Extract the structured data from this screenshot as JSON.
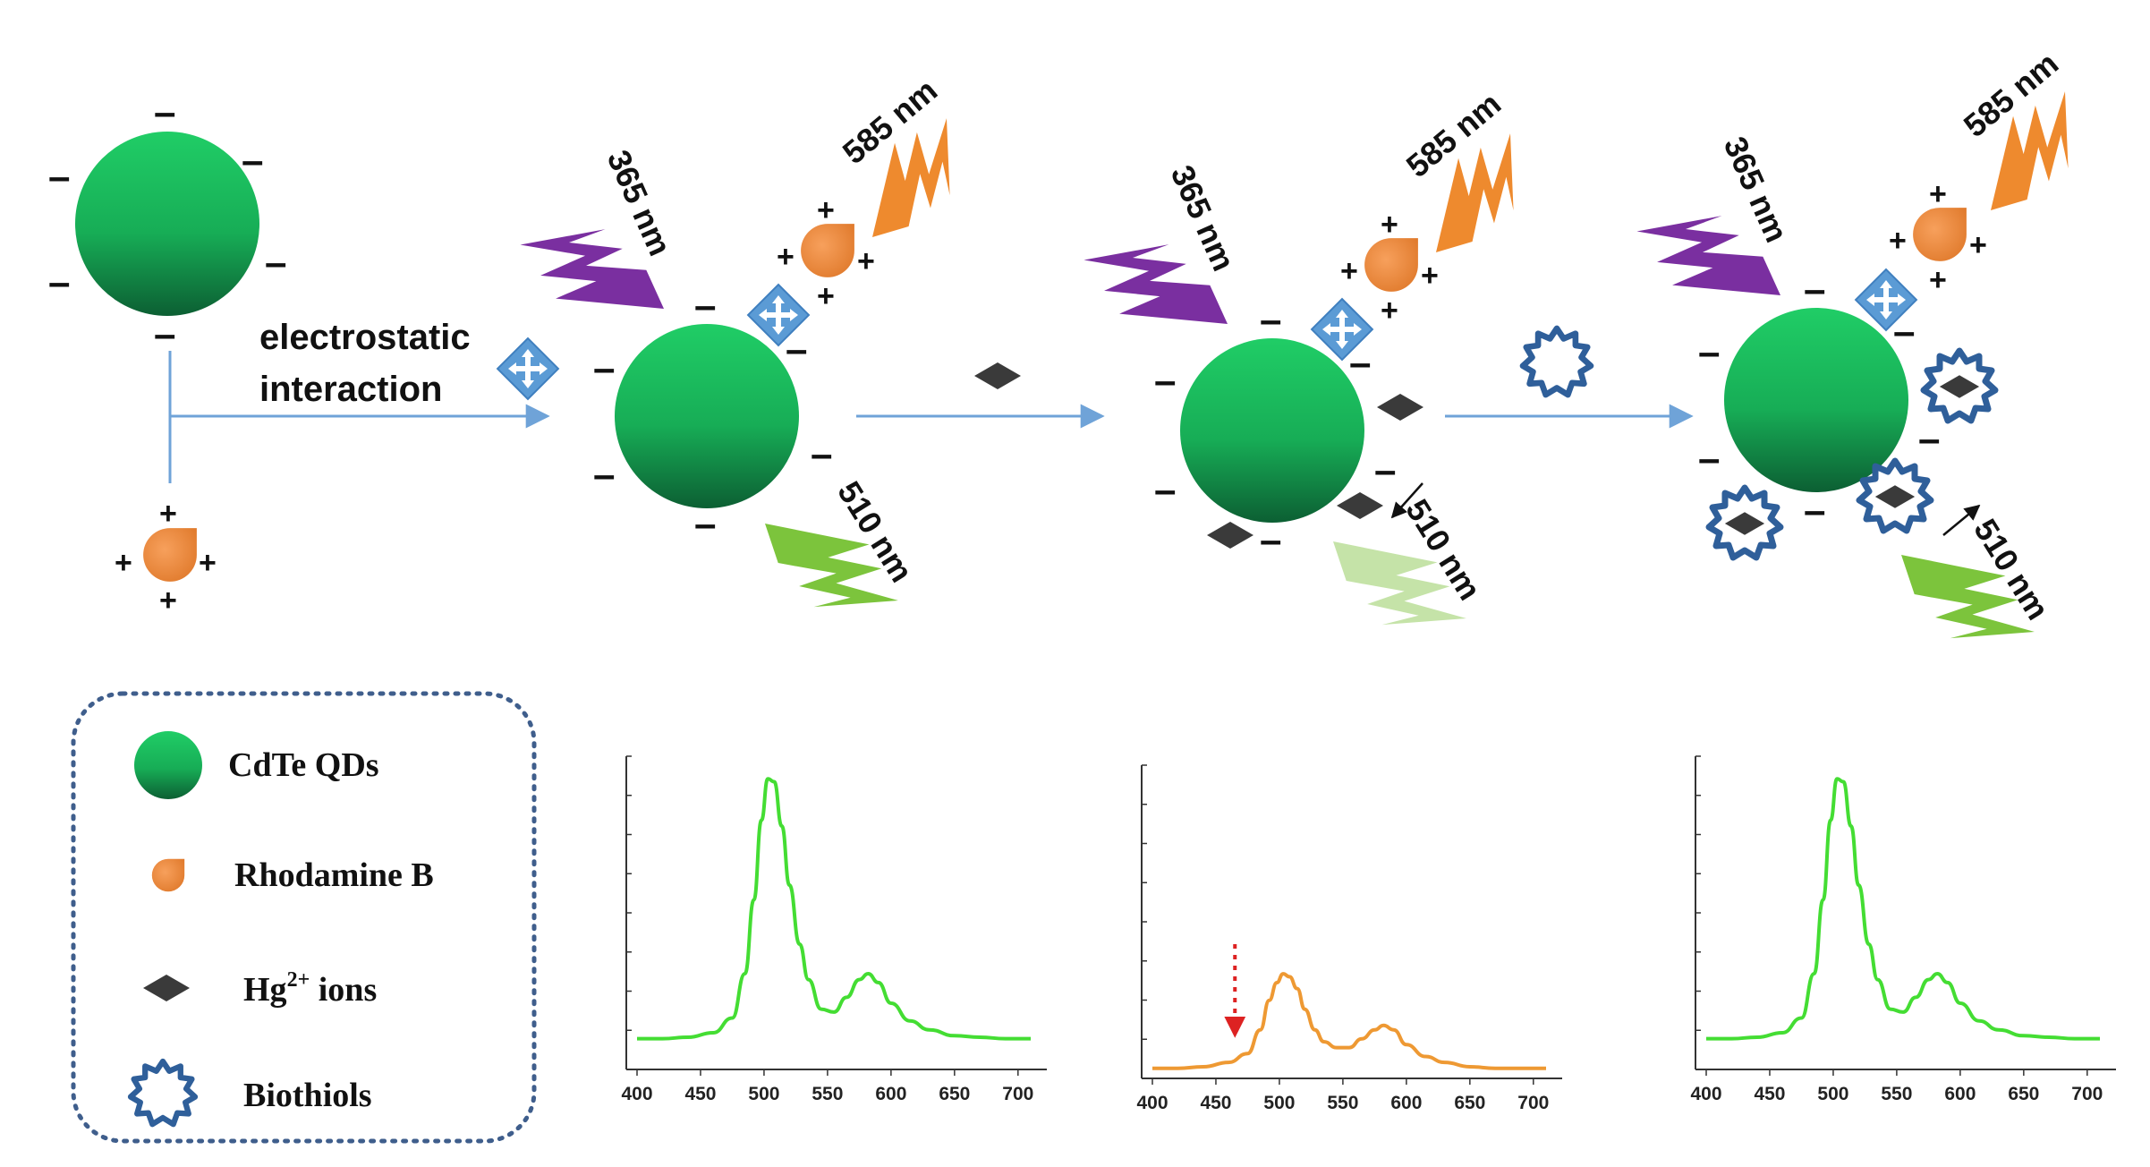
{
  "labels": {
    "electrostatic_line1": "electrostatic",
    "electrostatic_line2": "interaction",
    "wave_365": "365 nm",
    "wave_585": "585 nm",
    "wave_510": "510 nm"
  },
  "legend": {
    "items": [
      {
        "label": "CdTe QDs",
        "icon": "green-sphere-icon"
      },
      {
        "label": "Rhodamine B",
        "icon": "orange-drop-icon"
      },
      {
        "label": "Hg2+ ions",
        "icon": "dark-diamond-icon"
      },
      {
        "label": "Biothiols",
        "icon": "biothiol-star-icon"
      }
    ],
    "hg_prefix": "Hg",
    "hg_superscript": "2+",
    "hg_suffix": " ions"
  },
  "colors": {
    "qd_light": "#22cc66",
    "qd_dark": "#0e6b3a",
    "rhodamine": "#f08a3c",
    "violet_bolt": "#7a2fa0",
    "orange_bolt": "#ee8a2e",
    "green_bolt": "#7cc43c",
    "faded_green_bolt": "#c5e3a8",
    "linker_blue": "#5b9bd5",
    "hg_dark": "#3a3a3a",
    "biothiol_blue": "#2f5f9a",
    "arrow_blue": "#6fa3d8",
    "spectrum_green": "#44dd33",
    "spectrum_orange": "#ee9933",
    "decrease_arrow": "#dd2222"
  },
  "chart_data": [
    {
      "type": "line",
      "x_ticks": [
        400,
        450,
        500,
        550,
        600,
        650,
        700
      ],
      "xlim": [
        400,
        710
      ],
      "ylim": [
        0,
        1
      ],
      "series": [
        {
          "x": [
            400,
            420,
            440,
            460,
            475,
            485,
            492,
            498,
            503,
            508,
            514,
            520,
            528,
            535,
            545,
            555,
            565,
            575,
            582,
            590,
            600,
            615,
            630,
            650,
            670,
            690,
            710
          ],
          "values": [
            0.08,
            0.08,
            0.085,
            0.1,
            0.15,
            0.3,
            0.55,
            0.82,
            0.96,
            0.95,
            0.8,
            0.6,
            0.4,
            0.28,
            0.18,
            0.17,
            0.22,
            0.28,
            0.3,
            0.27,
            0.2,
            0.14,
            0.11,
            0.09,
            0.085,
            0.08,
            0.08
          ]
        }
      ]
    },
    {
      "type": "line",
      "x_ticks": [
        400,
        450,
        500,
        550,
        600,
        650,
        700
      ],
      "xlim": [
        400,
        710
      ],
      "ylim": [
        0,
        1
      ],
      "series": [
        {
          "x": [
            400,
            420,
            440,
            460,
            475,
            485,
            492,
            498,
            503,
            508,
            514,
            520,
            528,
            535,
            545,
            555,
            565,
            575,
            582,
            590,
            600,
            615,
            630,
            650,
            670,
            690,
            710
          ],
          "values": [
            0.01,
            0.01,
            0.015,
            0.03,
            0.06,
            0.14,
            0.24,
            0.3,
            0.33,
            0.32,
            0.28,
            0.21,
            0.14,
            0.1,
            0.08,
            0.08,
            0.11,
            0.14,
            0.155,
            0.14,
            0.09,
            0.05,
            0.03,
            0.015,
            0.01,
            0.01,
            0.01
          ]
        }
      ]
    },
    {
      "type": "line",
      "x_ticks": [
        400,
        450,
        500,
        550,
        600,
        650,
        700
      ],
      "xlim": [
        400,
        710
      ],
      "ylim": [
        0,
        1
      ],
      "series": [
        {
          "x": [
            400,
            420,
            440,
            460,
            475,
            485,
            492,
            498,
            503,
            508,
            514,
            520,
            528,
            535,
            545,
            555,
            565,
            575,
            582,
            590,
            600,
            615,
            630,
            650,
            670,
            690,
            710
          ],
          "values": [
            0.08,
            0.08,
            0.085,
            0.1,
            0.15,
            0.3,
            0.55,
            0.82,
            0.96,
            0.95,
            0.8,
            0.6,
            0.4,
            0.28,
            0.18,
            0.17,
            0.22,
            0.28,
            0.3,
            0.27,
            0.2,
            0.14,
            0.11,
            0.09,
            0.085,
            0.08,
            0.08
          ]
        }
      ]
    }
  ]
}
